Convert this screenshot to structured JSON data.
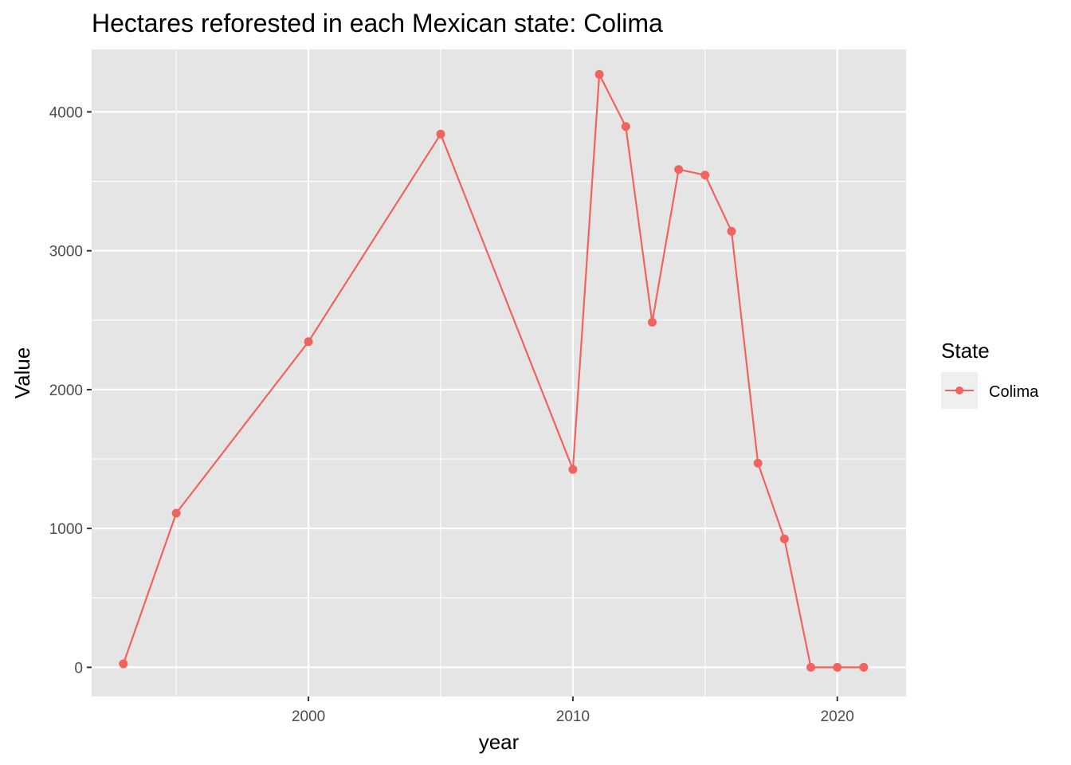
{
  "chart_data": {
    "type": "line",
    "title": "Hectares reforested in each Mexican state: Colima",
    "xlabel": "year",
    "ylabel": "Value",
    "xlim": [
      1991.8,
      2022.6
    ],
    "ylim": [
      -210,
      4450
    ],
    "x_ticks": [
      2000,
      2010,
      2020
    ],
    "x_minor_ticks": [
      1995,
      2005,
      2015
    ],
    "y_ticks": [
      0,
      1000,
      2000,
      3000,
      4000
    ],
    "y_minor_ticks": [
      500,
      1500,
      2500,
      3500
    ],
    "grid": true,
    "legend": {
      "title": "State",
      "position": "right"
    },
    "colors": {
      "panel": "#e5e5e5",
      "grid": "#ffffff",
      "series": "#f0635e",
      "legend_key": "#efefef"
    },
    "series": [
      {
        "name": "Colima",
        "x": [
          1993,
          1995,
          2000,
          2005,
          2010,
          2011,
          2012,
          2013,
          2014,
          2015,
          2016,
          2017,
          2018,
          2019,
          2020,
          2021
        ],
        "values": [
          25,
          1110,
          2345,
          3840,
          1425,
          4270,
          3895,
          2485,
          3585,
          3545,
          3140,
          1470,
          925,
          0,
          0,
          0
        ]
      }
    ]
  }
}
